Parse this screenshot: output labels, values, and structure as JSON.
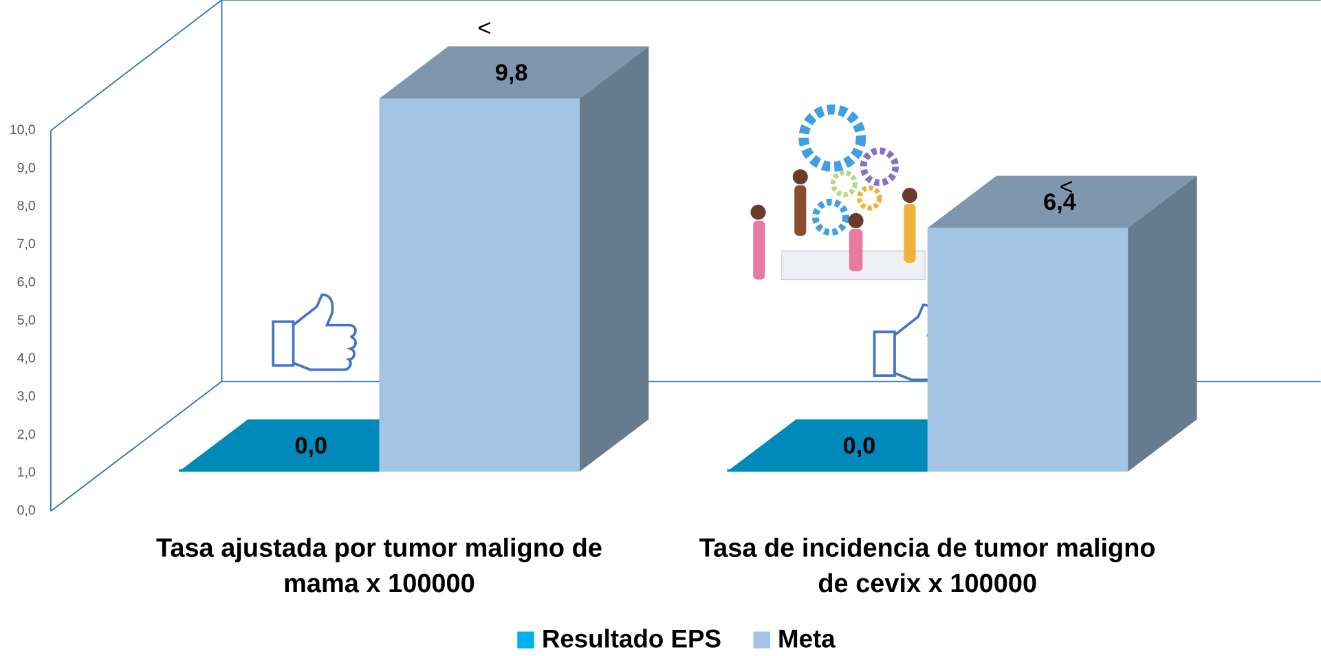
{
  "chart_data": {
    "type": "bar3d",
    "categories": [
      "Tasa ajustada por tumor maligno de mama x 100000",
      "Tasa de incidencia de tumor maligno de cevix x 100000"
    ],
    "series": [
      {
        "name": "Resultado EPS",
        "color": "#00b0f0",
        "values": [
          0,
          0
        ],
        "value_labels": [
          "0,0",
          "0,0"
        ]
      },
      {
        "name": "Meta",
        "color": "#a3c4e2",
        "values": [
          9.8,
          6.4
        ],
        "value_labels": [
          "9,8",
          "6,4"
        ]
      }
    ],
    "annotations": [
      "<",
      "<"
    ],
    "ylim": [
      0,
      10
    ],
    "yticks": [
      {
        "value": 0,
        "label": "0,0"
      },
      {
        "value": 1,
        "label": "1,0"
      },
      {
        "value": 2,
        "label": "2,0"
      },
      {
        "value": 3,
        "label": "3,0"
      },
      {
        "value": 4,
        "label": "4,0"
      },
      {
        "value": 5,
        "label": "5,0"
      },
      {
        "value": 6,
        "label": "6,0"
      },
      {
        "value": 7,
        "label": "7,0"
      },
      {
        "value": 8,
        "label": "8,0"
      },
      {
        "value": 9,
        "label": "9,0"
      },
      {
        "value": 10,
        "label": "10,0"
      }
    ],
    "legend": "bottom"
  }
}
